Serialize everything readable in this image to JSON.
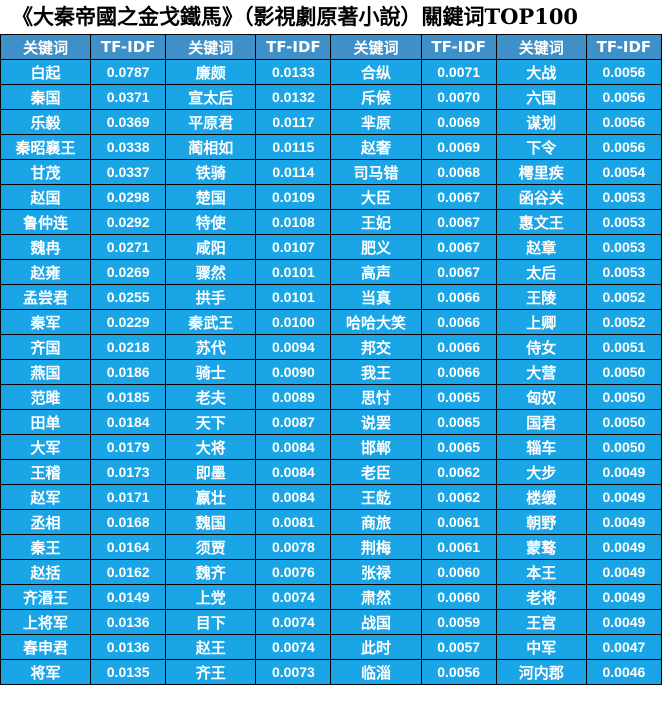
{
  "chart_data": {
    "type": "table",
    "title": "《大秦帝國之金戈鐵馬》（影視劇原著小說）關鍵词TOP100",
    "columns": [
      "关键词",
      "TF-IDF",
      "关键词",
      "TF-IDF",
      "关键词",
      "TF-IDF",
      "关键词",
      "TF-IDF"
    ],
    "rows": [
      [
        "白起",
        "0.0787",
        "廉颇",
        "0.0133",
        "合纵",
        "0.0071",
        "大战",
        "0.0056"
      ],
      [
        "秦国",
        "0.0371",
        "宣太后",
        "0.0132",
        "斥候",
        "0.0070",
        "六国",
        "0.0056"
      ],
      [
        "乐毅",
        "0.0369",
        "平原君",
        "0.0117",
        "芈原",
        "0.0069",
        "谋划",
        "0.0056"
      ],
      [
        "秦昭襄王",
        "0.0338",
        "蔺相如",
        "0.0115",
        "赵奢",
        "0.0069",
        "下令",
        "0.0056"
      ],
      [
        "甘茂",
        "0.0337",
        "铁骑",
        "0.0114",
        "司马错",
        "0.0068",
        "樗里疾",
        "0.0054"
      ],
      [
        "赵国",
        "0.0298",
        "楚国",
        "0.0109",
        "大臣",
        "0.0067",
        "函谷关",
        "0.0053"
      ],
      [
        "鲁仲连",
        "0.0292",
        "特使",
        "0.0108",
        "王妃",
        "0.0067",
        "惠文王",
        "0.0053"
      ],
      [
        "魏冉",
        "0.0271",
        "咸阳",
        "0.0107",
        "肥义",
        "0.0067",
        "赵章",
        "0.0053"
      ],
      [
        "赵雍",
        "0.0269",
        "骤然",
        "0.0101",
        "高声",
        "0.0067",
        "太后",
        "0.0053"
      ],
      [
        "孟尝君",
        "0.0255",
        "拱手",
        "0.0101",
        "当真",
        "0.0066",
        "王陵",
        "0.0052"
      ],
      [
        "秦军",
        "0.0229",
        "秦武王",
        "0.0100",
        "哈哈大笑",
        "0.0066",
        "上卿",
        "0.0052"
      ],
      [
        "齐国",
        "0.0218",
        "苏代",
        "0.0094",
        "邦交",
        "0.0066",
        "侍女",
        "0.0051"
      ],
      [
        "燕国",
        "0.0186",
        "骑士",
        "0.0090",
        "我王",
        "0.0066",
        "大营",
        "0.0050"
      ],
      [
        "范雎",
        "0.0185",
        "老夫",
        "0.0089",
        "思忖",
        "0.0065",
        "匈奴",
        "0.0050"
      ],
      [
        "田单",
        "0.0184",
        "天下",
        "0.0087",
        "说罢",
        "0.0065",
        "国君",
        "0.0050"
      ],
      [
        "大军",
        "0.0179",
        "大将",
        "0.0084",
        "邯郸",
        "0.0065",
        "辎车",
        "0.0050"
      ],
      [
        "王稽",
        "0.0173",
        "即墨",
        "0.0084",
        "老臣",
        "0.0062",
        "大步",
        "0.0049"
      ],
      [
        "赵军",
        "0.0171",
        "嬴壮",
        "0.0084",
        "王龁",
        "0.0062",
        "楼缓",
        "0.0049"
      ],
      [
        "丞相",
        "0.0168",
        "魏国",
        "0.0081",
        "商旅",
        "0.0061",
        "朝野",
        "0.0049"
      ],
      [
        "秦王",
        "0.0164",
        "须贾",
        "0.0078",
        "荆梅",
        "0.0061",
        "蒙骜",
        "0.0049"
      ],
      [
        "赵括",
        "0.0162",
        "魏齐",
        "0.0076",
        "张禄",
        "0.0060",
        "本王",
        "0.0049"
      ],
      [
        "齐湣王",
        "0.0149",
        "上党",
        "0.0074",
        "肃然",
        "0.0060",
        "老将",
        "0.0049"
      ],
      [
        "上将军",
        "0.0136",
        "目下",
        "0.0074",
        "战国",
        "0.0059",
        "王宫",
        "0.0049"
      ],
      [
        "春申君",
        "0.0136",
        "赵王",
        "0.0074",
        "此时",
        "0.0057",
        "中军",
        "0.0047"
      ],
      [
        "将军",
        "0.0135",
        "齐王",
        "0.0073",
        "临淄",
        "0.0056",
        "河内郡",
        "0.0046"
      ]
    ]
  },
  "colors": {
    "header_bg": "#3f8fc8",
    "cell_bg": "#1aa5e6",
    "text": "#ffffff",
    "border": "#000000"
  }
}
